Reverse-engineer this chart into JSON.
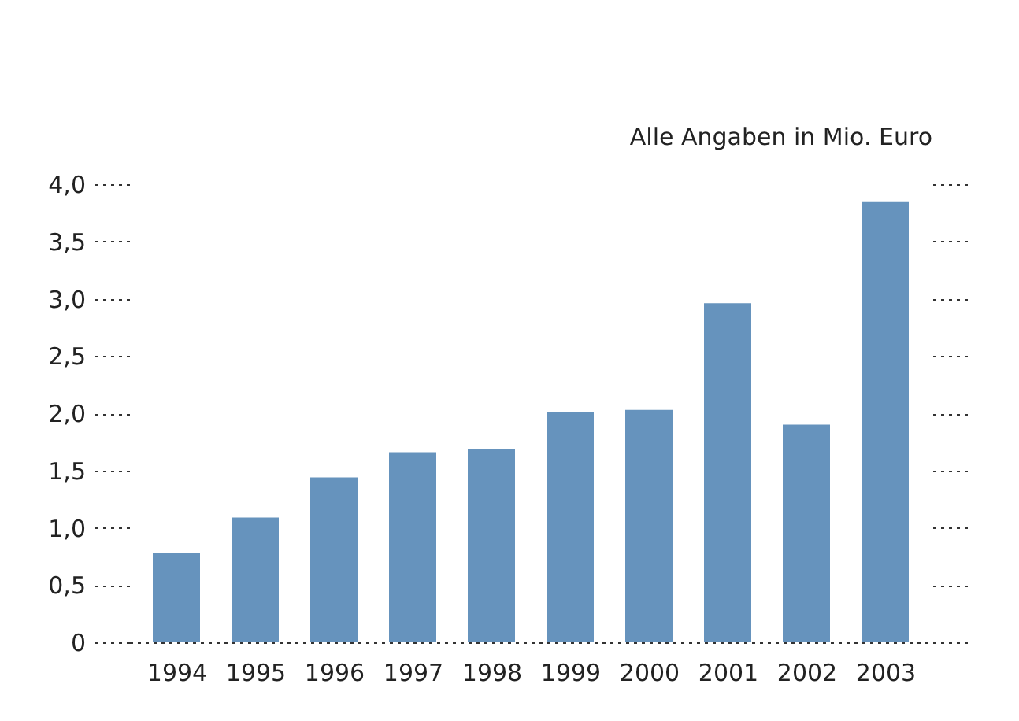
{
  "chart_data": {
    "type": "bar",
    "annotations": [
      "Alle Angaben in Mio. Euro"
    ],
    "categories": [
      "1994",
      "1995",
      "1996",
      "1997",
      "1998",
      "1999",
      "2000",
      "2001",
      "2002",
      "2003"
    ],
    "values": [
      0.78,
      1.09,
      1.44,
      1.66,
      1.69,
      2.01,
      2.03,
      2.96,
      1.9,
      3.85
    ],
    "color": "#6693bd",
    "ylim": [
      0,
      4
    ],
    "yticks": [
      {
        "value": 0,
        "label": "0"
      },
      {
        "value": 0.5,
        "label": "0,5"
      },
      {
        "value": 1,
        "label": "1,0"
      },
      {
        "value": 1.5,
        "label": "1,5"
      },
      {
        "value": 2,
        "label": "2,0"
      },
      {
        "value": 2.5,
        "label": "2,5"
      },
      {
        "value": 3,
        "label": "3,0"
      },
      {
        "value": 3.5,
        "label": "3,5"
      },
      {
        "value": 4,
        "label": "4,0"
      }
    ],
    "grid": false
  }
}
